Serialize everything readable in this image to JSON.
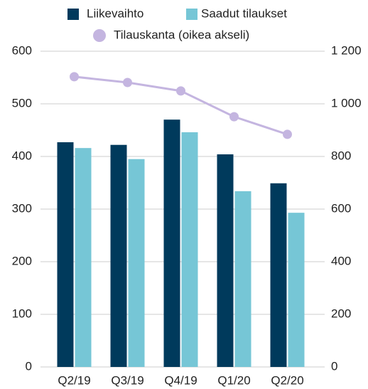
{
  "chart_data": {
    "type": "bar",
    "categories": [
      "Q2/19",
      "Q3/19",
      "Q4/19",
      "Q1/20",
      "Q2/20"
    ],
    "series": [
      {
        "name": "Liikevaihto",
        "color": "#003a5c",
        "values": [
          427,
          422,
          470,
          404,
          349
        ]
      },
      {
        "name": "Saadut tilaukset",
        "color": "#76c6d6",
        "values": [
          416,
          395,
          446,
          334,
          293
        ]
      },
      {
        "name": "Tilauskanta (oikea akseli)",
        "color": "#c4b5e0",
        "type": "line",
        "axis": "y2",
        "values": [
          1103,
          1081,
          1049,
          951,
          884
        ]
      }
    ],
    "ylim": [
      0,
      600
    ],
    "yticks": [
      0,
      100,
      200,
      300,
      400,
      500,
      600
    ],
    "y2lim": [
      0,
      1200
    ],
    "y2ticks": [
      0,
      200,
      400,
      600,
      800,
      {
        "value": 1000,
        "label": "1 000"
      },
      {
        "value": 1200,
        "label": "1 200"
      }
    ],
    "grid": true,
    "legend": "top"
  }
}
